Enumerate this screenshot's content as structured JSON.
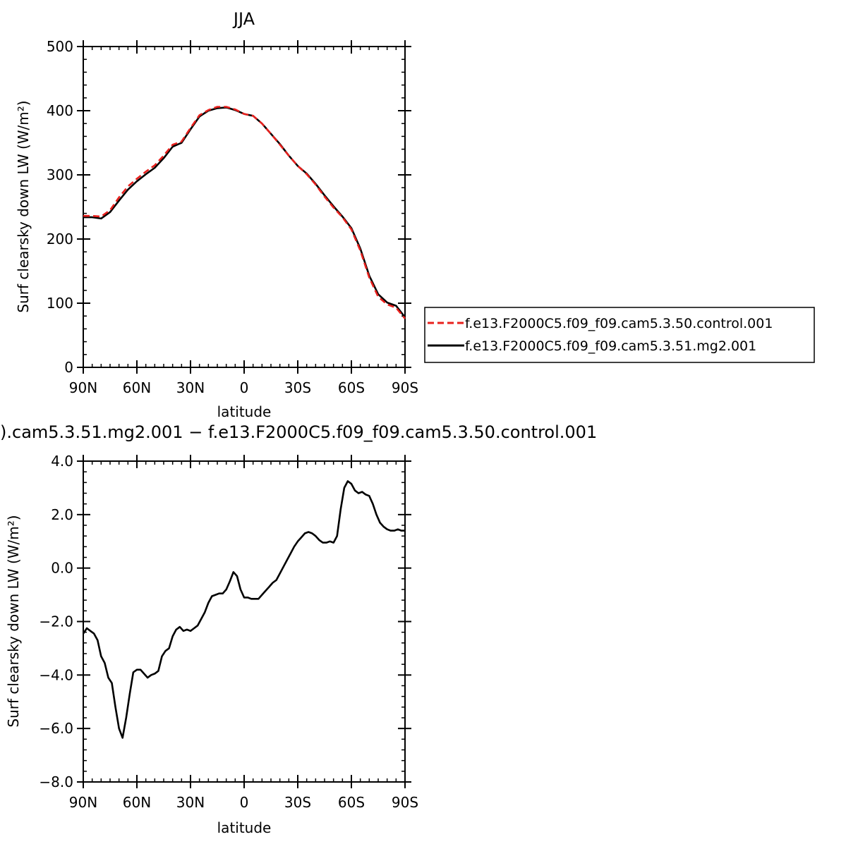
{
  "chart_data": [
    {
      "type": "line",
      "title": "JJA",
      "xlabel": "latitude",
      "ylabel": "Surf clearsky down LW (W/m²)",
      "xlim": [
        90,
        -90
      ],
      "ylim": [
        0,
        500
      ],
      "x_ticks": [
        90,
        60,
        30,
        0,
        -30,
        -60,
        -90
      ],
      "x_tick_labels": [
        "90N",
        "60N",
        "30N",
        "0",
        "30S",
        "60S",
        "90S"
      ],
      "y_ticks": [
        0,
        100,
        200,
        300,
        400,
        500
      ],
      "y_tick_labels": [
        "0",
        "100",
        "200",
        "300",
        "400",
        "500"
      ],
      "legend_position": "right",
      "x": [
        90,
        85,
        80,
        75,
        70,
        65,
        60,
        55,
        50,
        45,
        40,
        35,
        30,
        25,
        20,
        15,
        10,
        5,
        0,
        -5,
        -10,
        -15,
        -20,
        -25,
        -30,
        -35,
        -40,
        -45,
        -50,
        -55,
        -60,
        -65,
        -70,
        -75,
        -80,
        -85,
        -90
      ],
      "series": [
        {
          "name": "f.e13.F2000C5.f09_f09.cam5.3.50.control.001",
          "color": "#e8201d",
          "dash": "dashed",
          "values": [
            236,
            236,
            235,
            245,
            265,
            282,
            294,
            305,
            315,
            330,
            347,
            352,
            373,
            393,
            401,
            406,
            406,
            402,
            395,
            392,
            380,
            364,
            347,
            330,
            314,
            301,
            285,
            266,
            249,
            234,
            215,
            182,
            140,
            110,
            98,
            93,
            76
          ]
        },
        {
          "name": "f.e13.F2000C5.f09_f09.cam5.3.51.mg2.001",
          "color": "#000000",
          "dash": "solid",
          "values": [
            234,
            234,
            232,
            242,
            260,
            277,
            290,
            301,
            311,
            326,
            344,
            350,
            371,
            391,
            400,
            404,
            405,
            401,
            395,
            392,
            380,
            364,
            348,
            330,
            314,
            302,
            286,
            268,
            251,
            235,
            217,
            185,
            143,
            114,
            101,
            96,
            78
          ]
        }
      ]
    },
    {
      "type": "line",
      "title": ").cam5.3.51.mg2.001 − f.e13.F2000C5.f09_f09.cam5.3.50.control.001",
      "xlabel": "latitude",
      "ylabel": "Surf clearsky down LW (W/m²)",
      "xlim": [
        90,
        -90
      ],
      "ylim": [
        -8,
        4
      ],
      "x_ticks": [
        90,
        60,
        30,
        0,
        -30,
        -60,
        -90
      ],
      "x_tick_labels": [
        "90N",
        "60N",
        "30N",
        "0",
        "30S",
        "60S",
        "90S"
      ],
      "y_ticks": [
        -8,
        -6,
        -4,
        -2,
        0,
        2,
        4
      ],
      "y_tick_labels": [
        "−8.0",
        "−6.0",
        "−4.0",
        "−2.0",
        "0.0",
        "2.0",
        "4.0"
      ],
      "x": [
        90,
        88,
        86,
        84,
        82,
        80,
        78,
        76,
        74,
        72,
        70,
        68,
        66,
        64,
        62,
        60,
        58,
        56,
        54,
        52,
        50,
        48,
        46,
        44,
        42,
        40,
        38,
        36,
        34,
        32,
        30,
        28,
        26,
        24,
        22,
        20,
        18,
        16,
        14,
        12,
        10,
        8,
        6,
        4,
        2,
        0,
        -2,
        -4,
        -6,
        -8,
        -10,
        -12,
        -14,
        -16,
        -18,
        -20,
        -22,
        -24,
        -26,
        -28,
        -30,
        -32,
        -34,
        -36,
        -38,
        -40,
        -42,
        -44,
        -46,
        -48,
        -50,
        -52,
        -54,
        -56,
        -58,
        -60,
        -62,
        -64,
        -66,
        -68,
        -70,
        -72,
        -74,
        -76,
        -78,
        -80,
        -82,
        -84,
        -86,
        -88,
        -90
      ],
      "series": [
        {
          "name": "",
          "color": "#000000",
          "dash": "solid",
          "values": [
            -2.45,
            -2.25,
            -2.35,
            -2.45,
            -2.7,
            -3.3,
            -3.55,
            -4.1,
            -4.3,
            -5.2,
            -6.0,
            -6.35,
            -5.6,
            -4.7,
            -3.9,
            -3.8,
            -3.8,
            -3.95,
            -4.1,
            -4.0,
            -3.95,
            -3.85,
            -3.3,
            -3.1,
            -3.0,
            -2.55,
            -2.3,
            -2.2,
            -2.35,
            -2.3,
            -2.35,
            -2.25,
            -2.15,
            -1.9,
            -1.65,
            -1.3,
            -1.05,
            -1.0,
            -0.95,
            -0.95,
            -0.8,
            -0.5,
            -0.15,
            -0.3,
            -0.8,
            -1.1,
            -1.1,
            -1.15,
            -1.15,
            -1.15,
            -1.0,
            -0.85,
            -0.7,
            -0.55,
            -0.45,
            -0.2,
            0.05,
            0.3,
            0.55,
            0.8,
            1.0,
            1.15,
            1.3,
            1.35,
            1.3,
            1.2,
            1.05,
            0.95,
            0.95,
            1.0,
            0.95,
            1.2,
            2.2,
            3.0,
            3.25,
            3.15,
            2.9,
            2.8,
            2.85,
            2.75,
            2.7,
            2.4,
            2.0,
            1.7,
            1.55,
            1.45,
            1.4,
            1.4,
            1.45,
            1.4,
            1.4
          ]
        }
      ]
    }
  ]
}
